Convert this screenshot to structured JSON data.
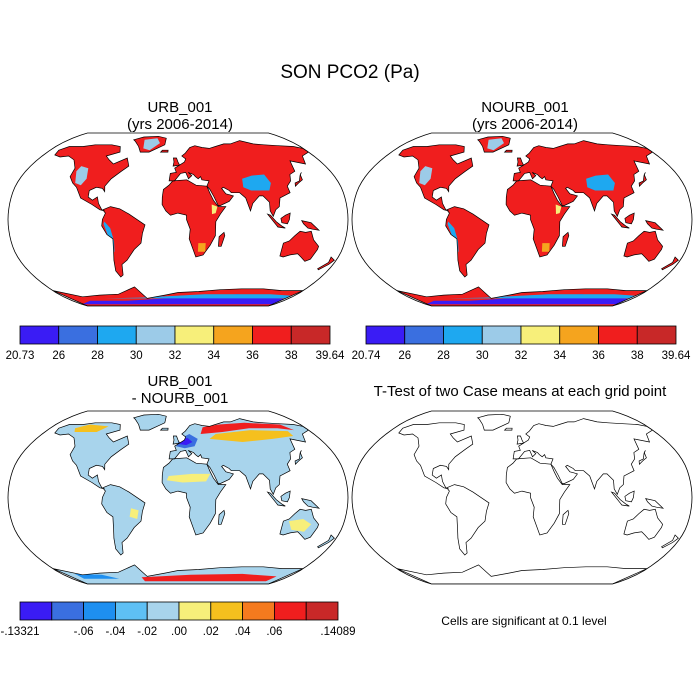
{
  "title": "SON PCO2 (Pa)",
  "panels": [
    {
      "title_line1": "URB_001",
      "title_line2": "(yrs 2006-2014)",
      "colorbar": {
        "labels": [
          "20.73",
          "26",
          "28",
          "30",
          "32",
          "34",
          "36",
          "38",
          "39.64"
        ]
      }
    },
    {
      "title_line1": "NOURB_001",
      "title_line2": "(yrs 2006-2014)",
      "colorbar": {
        "labels": [
          "20.74",
          "26",
          "28",
          "30",
          "32",
          "34",
          "36",
          "38",
          "39.64"
        ]
      }
    },
    {
      "title_line1": "URB_001",
      "title_line2": "- NOURB_001",
      "colorbar": {
        "labels": [
          "-.13321",
          "-.06",
          "-.04",
          "-.02",
          ".00",
          ".02",
          ".04",
          ".06",
          ".14089"
        ]
      }
    },
    {
      "title_line1": "T-Test of two Case means at each grid point",
      "note": "Cells are significant at 0.1 level"
    }
  ],
  "colors": {
    "abs_scale": [
      "#3a1cf5",
      "#3a6fe0",
      "#1ea8f0",
      "#9ccbe8",
      "#f7ef7a",
      "#f5a41e",
      "#f01e1e",
      "#c82828"
    ],
    "diff_scale": [
      "#3a1cf5",
      "#3a6fe0",
      "#1e8ff0",
      "#5ec0f5",
      "#a8d4ec",
      "#f7ef7a",
      "#f5c01e",
      "#f57a1e",
      "#f01e1e",
      "#c82828"
    ],
    "ocean": "#ffffff",
    "coast": "#000000"
  }
}
